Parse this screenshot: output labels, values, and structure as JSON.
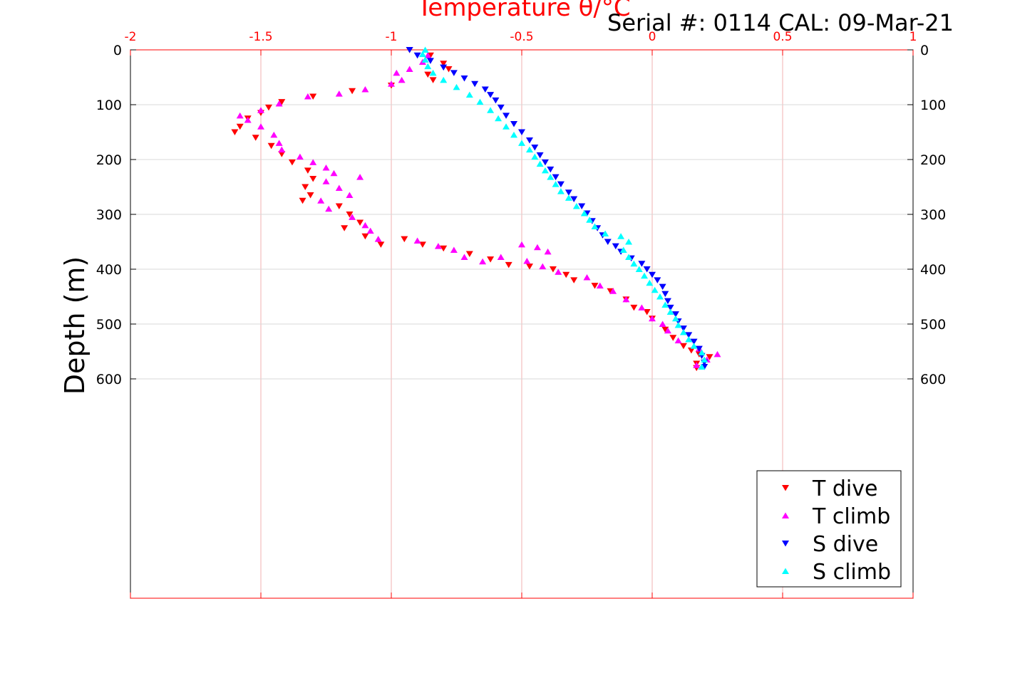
{
  "chart_data": {
    "type": "scatter",
    "title": "Temperature θ/°C",
    "title_color": "#ff0000",
    "annotation": "Serial #: 0114  CAL: 09-Mar-21",
    "ylabel": "Depth (m)",
    "xlim": [
      -2,
      1
    ],
    "ylim": [
      0,
      1000
    ],
    "y_reversed": true,
    "x_axis_position": "top",
    "x_ticks": [
      "-2",
      "-1.5",
      "-1",
      "-0.5",
      "0",
      "0.5",
      "1"
    ],
    "y_ticks": [
      "0",
      "100",
      "200",
      "300",
      "400",
      "500",
      "600"
    ],
    "grid": true,
    "legend_position": "bottom-right",
    "series": [
      {
        "name": "T dive",
        "color": "#ff0000",
        "marker": "triangle-down",
        "points": [
          [
            -0.93,
            0
          ],
          [
            -0.85,
            10
          ],
          [
            -0.8,
            25
          ],
          [
            -0.78,
            35
          ],
          [
            -0.86,
            45
          ],
          [
            -0.84,
            55
          ],
          [
            -1.0,
            65
          ],
          [
            -1.15,
            75
          ],
          [
            -1.3,
            85
          ],
          [
            -1.42,
            95
          ],
          [
            -1.47,
            105
          ],
          [
            -1.5,
            115
          ],
          [
            -1.55,
            125
          ],
          [
            -1.58,
            140
          ],
          [
            -1.6,
            150
          ],
          [
            -1.52,
            160
          ],
          [
            -1.46,
            175
          ],
          [
            -1.42,
            190
          ],
          [
            -1.38,
            205
          ],
          [
            -1.32,
            220
          ],
          [
            -1.3,
            235
          ],
          [
            -1.33,
            250
          ],
          [
            -1.31,
            265
          ],
          [
            -1.34,
            275
          ],
          [
            -1.2,
            285
          ],
          [
            -1.16,
            300
          ],
          [
            -1.12,
            315
          ],
          [
            -1.18,
            325
          ],
          [
            -1.1,
            340
          ],
          [
            -1.04,
            355
          ],
          [
            -0.95,
            345
          ],
          [
            -0.88,
            355
          ],
          [
            -0.8,
            362
          ],
          [
            -0.7,
            372
          ],
          [
            -0.62,
            382
          ],
          [
            -0.55,
            392
          ],
          [
            -0.47,
            395
          ],
          [
            -0.38,
            400
          ],
          [
            -0.33,
            410
          ],
          [
            -0.3,
            420
          ],
          [
            -0.22,
            430
          ],
          [
            -0.16,
            440
          ],
          [
            -0.1,
            455
          ],
          [
            -0.07,
            470
          ],
          [
            -0.02,
            478
          ],
          [
            0.0,
            490
          ],
          [
            0.05,
            510
          ],
          [
            0.08,
            525
          ],
          [
            0.12,
            540
          ],
          [
            0.15,
            548
          ],
          [
            0.18,
            555
          ],
          [
            0.22,
            560
          ],
          [
            0.17,
            572
          ],
          [
            0.17,
            580
          ]
        ]
      },
      {
        "name": "T climb",
        "color": "#ff00ff",
        "marker": "triangle-up",
        "points": [
          [
            0.17,
            575
          ],
          [
            0.21,
            565
          ],
          [
            0.25,
            555
          ],
          [
            0.18,
            545
          ],
          [
            0.1,
            530
          ],
          [
            0.06,
            512
          ],
          [
            0.04,
            500
          ],
          [
            0.0,
            490
          ],
          [
            -0.04,
            470
          ],
          [
            -0.1,
            455
          ],
          [
            -0.15,
            440
          ],
          [
            -0.2,
            430
          ],
          [
            -0.25,
            415
          ],
          [
            -0.36,
            405
          ],
          [
            -0.42,
            395
          ],
          [
            -0.48,
            385
          ],
          [
            -0.58,
            378
          ],
          [
            -0.65,
            386
          ],
          [
            -0.72,
            378
          ],
          [
            -0.76,
            365
          ],
          [
            -0.82,
            358
          ],
          [
            -0.9,
            348
          ],
          [
            -0.44,
            360
          ],
          [
            -0.4,
            368
          ],
          [
            -0.5,
            355
          ],
          [
            -1.05,
            345
          ],
          [
            -1.08,
            330
          ],
          [
            -1.1,
            320
          ],
          [
            -1.15,
            305
          ],
          [
            -1.24,
            290
          ],
          [
            -1.27,
            275
          ],
          [
            -1.16,
            265
          ],
          [
            -1.2,
            252
          ],
          [
            -1.25,
            240
          ],
          [
            -1.12,
            232
          ],
          [
            -1.22,
            225
          ],
          [
            -1.25,
            215
          ],
          [
            -1.3,
            205
          ],
          [
            -1.35,
            195
          ],
          [
            -1.42,
            182
          ],
          [
            -1.43,
            170
          ],
          [
            -1.45,
            155
          ],
          [
            -1.5,
            140
          ],
          [
            -1.55,
            128
          ],
          [
            -1.58,
            120
          ],
          [
            -1.5,
            110
          ],
          [
            -1.43,
            98
          ],
          [
            -1.32,
            85
          ],
          [
            -1.2,
            80
          ],
          [
            -1.1,
            72
          ],
          [
            -1.0,
            62
          ],
          [
            -0.96,
            55
          ],
          [
            -0.98,
            42
          ],
          [
            -0.93,
            35
          ],
          [
            -0.88,
            22
          ],
          [
            -0.86,
            10
          ]
        ]
      },
      {
        "name": "S dive",
        "color": "#0000ff",
        "marker": "triangle-down",
        "points": [
          [
            -0.93,
            0
          ],
          [
            -0.9,
            10
          ],
          [
            -0.85,
            20
          ],
          [
            -0.8,
            32
          ],
          [
            -0.76,
            42
          ],
          [
            -0.72,
            52
          ],
          [
            -0.68,
            62
          ],
          [
            -0.64,
            72
          ],
          [
            -0.62,
            82
          ],
          [
            -0.6,
            92
          ],
          [
            -0.58,
            105
          ],
          [
            -0.56,
            120
          ],
          [
            -0.53,
            135
          ],
          [
            -0.5,
            150
          ],
          [
            -0.47,
            165
          ],
          [
            -0.45,
            178
          ],
          [
            -0.43,
            192
          ],
          [
            -0.41,
            205
          ],
          [
            -0.39,
            218
          ],
          [
            -0.37,
            232
          ],
          [
            -0.35,
            245
          ],
          [
            -0.32,
            260
          ],
          [
            -0.3,
            272
          ],
          [
            -0.27,
            285
          ],
          [
            -0.25,
            298
          ],
          [
            -0.23,
            312
          ],
          [
            -0.21,
            325
          ],
          [
            -0.19,
            338
          ],
          [
            -0.17,
            350
          ],
          [
            -0.14,
            358
          ],
          [
            -0.12,
            368
          ],
          [
            -0.08,
            380
          ],
          [
            -0.04,
            390
          ],
          [
            -0.02,
            400
          ],
          [
            0.0,
            410
          ],
          [
            0.02,
            420
          ],
          [
            0.04,
            432
          ],
          [
            0.05,
            445
          ],
          [
            0.06,
            458
          ],
          [
            0.07,
            470
          ],
          [
            0.09,
            482
          ],
          [
            0.1,
            495
          ],
          [
            0.12,
            508
          ],
          [
            0.14,
            520
          ],
          [
            0.16,
            532
          ],
          [
            0.18,
            545
          ],
          [
            0.19,
            558
          ],
          [
            0.2,
            570
          ],
          [
            0.2,
            578
          ]
        ]
      },
      {
        "name": "S climb",
        "color": "#00ffff",
        "marker": "triangle-up",
        "points": [
          [
            0.19,
            578
          ],
          [
            0.2,
            565
          ],
          [
            0.19,
            552
          ],
          [
            0.16,
            540
          ],
          [
            0.14,
            528
          ],
          [
            0.12,
            515
          ],
          [
            0.1,
            502
          ],
          [
            0.09,
            490
          ],
          [
            0.07,
            478
          ],
          [
            0.05,
            465
          ],
          [
            0.03,
            450
          ],
          [
            0.01,
            438
          ],
          [
            -0.01,
            425
          ],
          [
            -0.03,
            412
          ],
          [
            -0.05,
            400
          ],
          [
            -0.07,
            390
          ],
          [
            -0.09,
            378
          ],
          [
            -0.11,
            365
          ],
          [
            -0.09,
            350
          ],
          [
            -0.12,
            340
          ],
          [
            -0.18,
            335
          ],
          [
            -0.22,
            322
          ],
          [
            -0.24,
            310
          ],
          [
            -0.26,
            298
          ],
          [
            -0.29,
            285
          ],
          [
            -0.32,
            270
          ],
          [
            -0.35,
            258
          ],
          [
            -0.37,
            245
          ],
          [
            -0.39,
            232
          ],
          [
            -0.41,
            220
          ],
          [
            -0.43,
            208
          ],
          [
            -0.45,
            195
          ],
          [
            -0.47,
            182
          ],
          [
            -0.5,
            170
          ],
          [
            -0.53,
            155
          ],
          [
            -0.56,
            140
          ],
          [
            -0.59,
            125
          ],
          [
            -0.62,
            110
          ],
          [
            -0.66,
            95
          ],
          [
            -0.7,
            82
          ],
          [
            -0.75,
            68
          ],
          [
            -0.8,
            55
          ],
          [
            -0.84,
            42
          ],
          [
            -0.86,
            30
          ],
          [
            -0.87,
            18
          ],
          [
            -0.88,
            8
          ],
          [
            -0.87,
            0
          ]
        ]
      }
    ]
  }
}
